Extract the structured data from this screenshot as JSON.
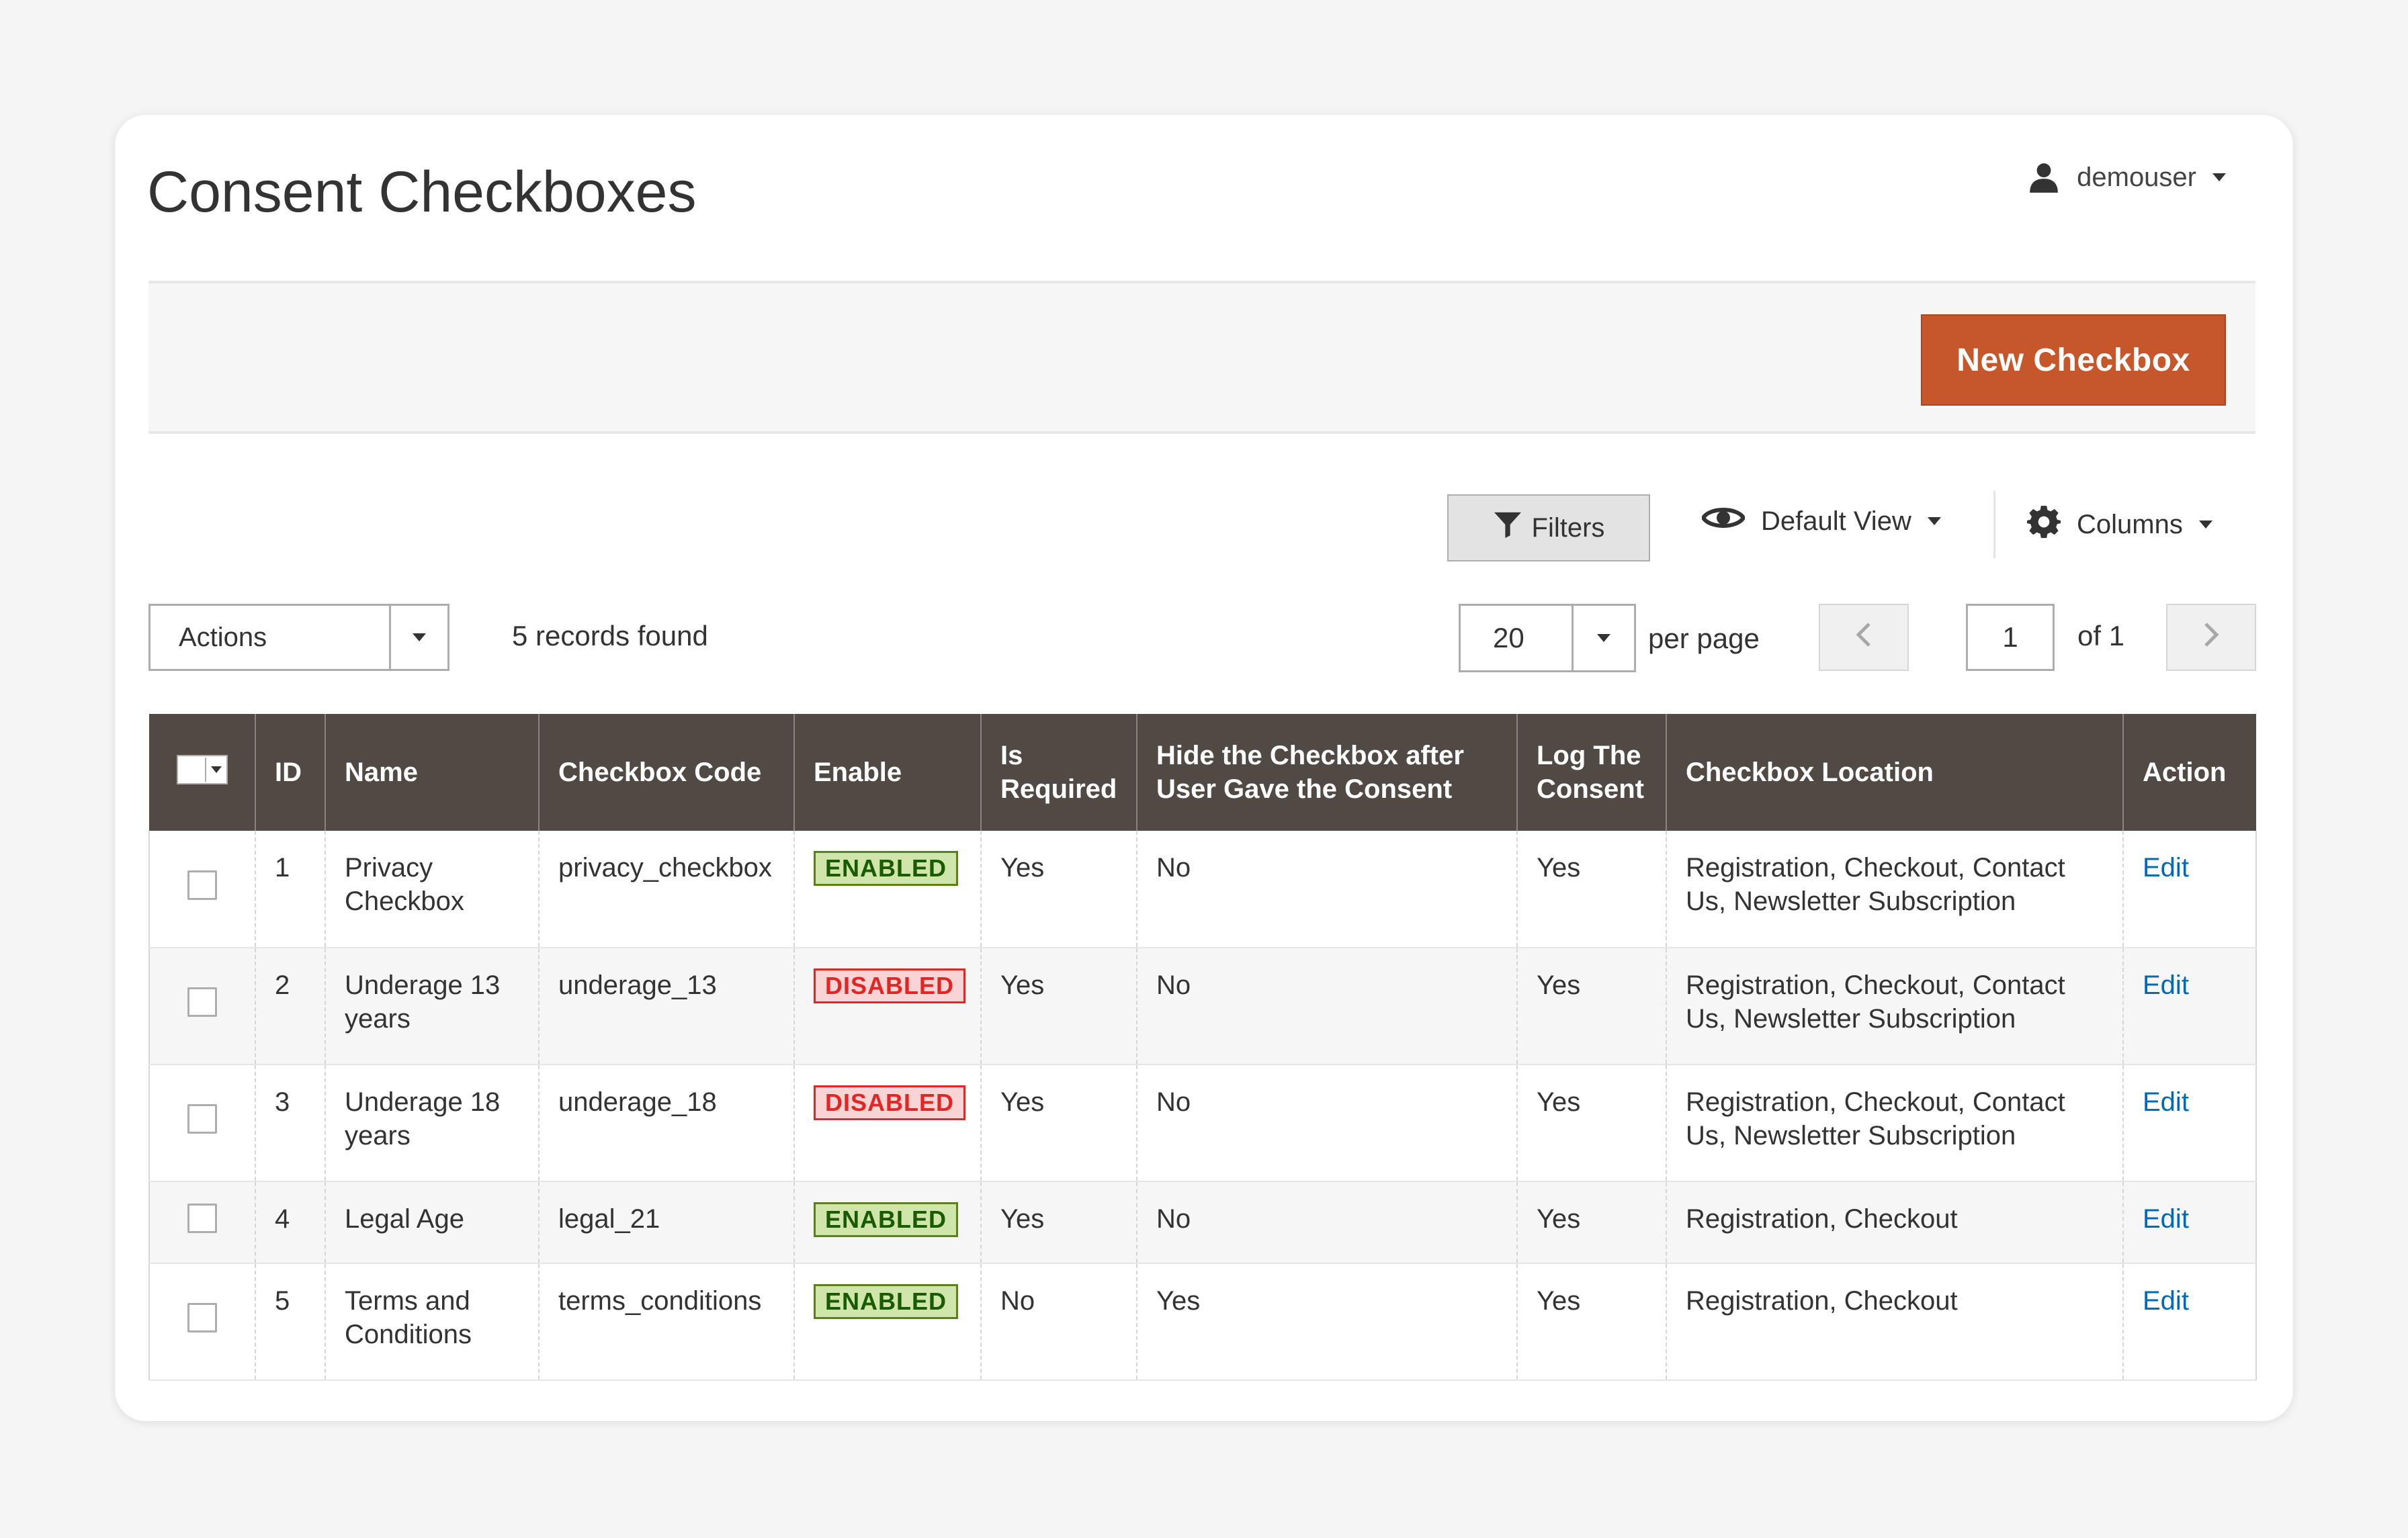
{
  "page": {
    "title": "Consent Checkboxes"
  },
  "user": {
    "name": "demouser"
  },
  "toolbar": {
    "new_button": "New Checkbox"
  },
  "controls": {
    "filters_label": "Filters",
    "view_label": "Default View",
    "columns_label": "Columns",
    "actions_label": "Actions",
    "records_found": "5 records found",
    "per_page_value": "20",
    "per_page_label": "per page",
    "current_page": "1",
    "of_pages": "of 1"
  },
  "table": {
    "headers": {
      "id": "ID",
      "name": "Name",
      "code": "Checkbox Code",
      "enable": "Enable",
      "required": "Is Required",
      "hide": "Hide the Checkbox after User Gave the Consent",
      "log": "Log The Consent",
      "location": "Checkbox Location",
      "action": "Action"
    },
    "rows": [
      {
        "id": "1",
        "name": "Privacy Checkbox",
        "code": "privacy_checkbox",
        "status": "ENABLED",
        "required": "Yes",
        "hide": "No",
        "log": "Yes",
        "location": "Registration, Checkout, Contact Us, Newsletter Subscription",
        "action": "Edit"
      },
      {
        "id": "2",
        "name": "Underage 13 years",
        "code": "underage_13",
        "status": "DISABLED",
        "required": "Yes",
        "hide": "No",
        "log": "Yes",
        "location": "Registration, Checkout, Contact Us, Newsletter Subscription",
        "action": "Edit"
      },
      {
        "id": "3",
        "name": "Underage 18 years",
        "code": "underage_18",
        "status": "DISABLED",
        "required": "Yes",
        "hide": "No",
        "log": "Yes",
        "location": "Registration, Checkout, Contact Us, Newsletter Subscription",
        "action": "Edit"
      },
      {
        "id": "4",
        "name": "Legal Age",
        "code": "legal_21",
        "status": "ENABLED",
        "required": "Yes",
        "hide": "No",
        "log": "Yes",
        "location": "Registration, Checkout",
        "action": "Edit"
      },
      {
        "id": "5",
        "name": "Terms and Conditions",
        "code": "terms_conditions",
        "status": "ENABLED",
        "required": "No",
        "hide": "Yes",
        "log": "Yes",
        "location": "Registration, Checkout",
        "action": "Edit"
      }
    ]
  },
  "colors": {
    "accent": "#c6572a",
    "header_bg": "#514943",
    "link": "#006bb4",
    "enabled_bg": "#d0e5a9",
    "disabled_text": "#e22626"
  },
  "icons": {
    "user": "user-icon",
    "filter": "filter-icon",
    "view": "eye-icon",
    "columns": "gear-icon",
    "prev": "chevron-left-icon",
    "next": "chevron-right-icon"
  }
}
